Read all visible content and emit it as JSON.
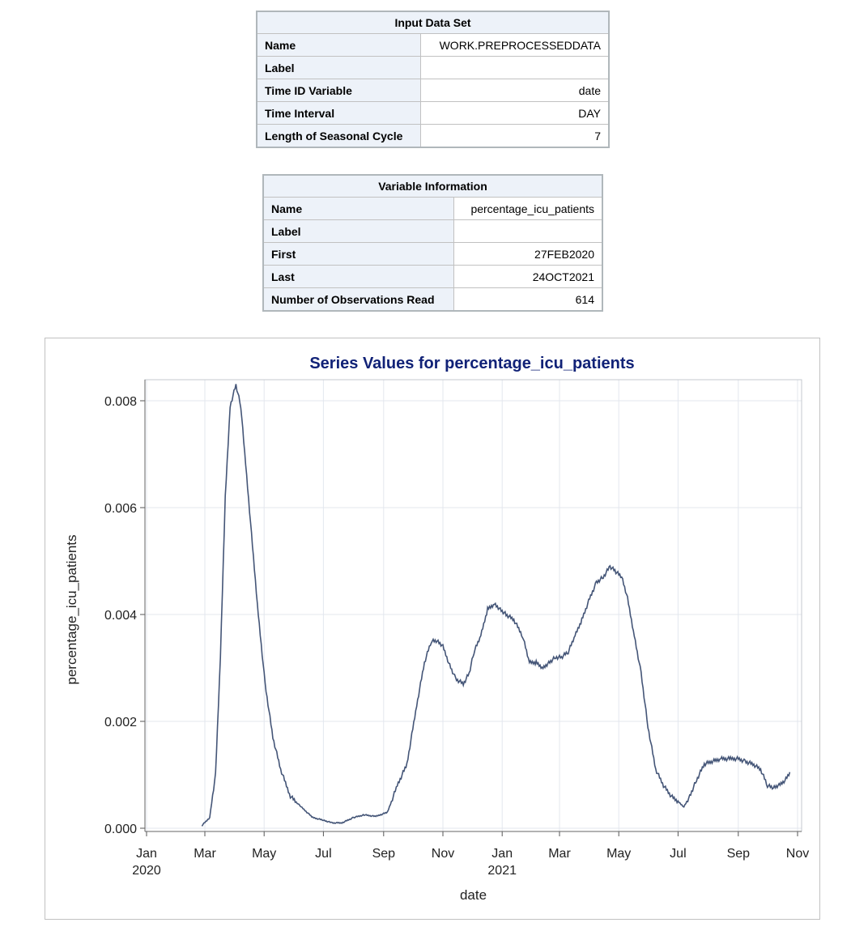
{
  "input_table": {
    "caption": "Input Data Set",
    "rows": [
      {
        "label": "Name",
        "value": "WORK.PREPROCESSEDDATA"
      },
      {
        "label": "Label",
        "value": ""
      },
      {
        "label": "Time ID Variable",
        "value": "date"
      },
      {
        "label": "Time Interval",
        "value": "DAY"
      },
      {
        "label": "Length of Seasonal Cycle",
        "value": "7"
      }
    ]
  },
  "variable_table": {
    "caption": "Variable Information",
    "rows": [
      {
        "label": "Name",
        "value": "percentage_icu_patients"
      },
      {
        "label": "Label",
        "value": ""
      },
      {
        "label": "First",
        "value": "27FEB2020"
      },
      {
        "label": "Last",
        "value": "24OCT2021"
      },
      {
        "label": "Number of Observations Read",
        "value": "614"
      }
    ]
  },
  "chart_data": {
    "type": "line",
    "title": "Series Values for percentage_icu_patients",
    "xlabel": "date",
    "ylabel": "percentage_icu_patients",
    "xlim": [
      "2020-01-01",
      "2021-11-01"
    ],
    "ylim": [
      0,
      0.008
    ],
    "x_ticks": [
      {
        "date": "2020-01-01",
        "label": "Jan",
        "year": "2020"
      },
      {
        "date": "2020-03-01",
        "label": "Mar",
        "year": ""
      },
      {
        "date": "2020-05-01",
        "label": "May",
        "year": ""
      },
      {
        "date": "2020-07-01",
        "label": "Jul",
        "year": ""
      },
      {
        "date": "2020-09-01",
        "label": "Sep",
        "year": ""
      },
      {
        "date": "2020-11-01",
        "label": "Nov",
        "year": ""
      },
      {
        "date": "2021-01-01",
        "label": "Jan",
        "year": "2021"
      },
      {
        "date": "2021-03-01",
        "label": "Mar",
        "year": ""
      },
      {
        "date": "2021-05-01",
        "label": "May",
        "year": ""
      },
      {
        "date": "2021-07-01",
        "label": "Jul",
        "year": ""
      },
      {
        "date": "2021-09-01",
        "label": "Sep",
        "year": ""
      },
      {
        "date": "2021-11-01",
        "label": "Nov",
        "year": ""
      }
    ],
    "y_ticks": [
      {
        "value": 0,
        "label": "0.000"
      },
      {
        "value": 0.002,
        "label": "0.002"
      },
      {
        "value": 0.004,
        "label": "0.004"
      },
      {
        "value": 0.006,
        "label": "0.006"
      },
      {
        "value": 0.008,
        "label": "0.008"
      }
    ],
    "grid": true,
    "line_color": "#445577",
    "series": [
      {
        "x": [
          "2020-02-27",
          "2020-03-06",
          "2020-03-12",
          "2020-03-17",
          "2020-03-22",
          "2020-03-27",
          "2020-04-02",
          "2020-04-07",
          "2020-04-12",
          "2020-04-18",
          "2020-04-25",
          "2020-05-02",
          "2020-05-10",
          "2020-05-18",
          "2020-05-28",
          "2020-06-08",
          "2020-06-20",
          "2020-07-01",
          "2020-07-10",
          "2020-07-20",
          "2020-08-01",
          "2020-08-12",
          "2020-08-24",
          "2020-09-05",
          "2020-09-15",
          "2020-09-25",
          "2020-10-05",
          "2020-10-13",
          "2020-10-20",
          "2020-10-26",
          "2020-11-01",
          "2020-11-07",
          "2020-11-14",
          "2020-11-22",
          "2020-11-28",
          "2020-12-03",
          "2020-12-10",
          "2020-12-17",
          "2020-12-24",
          "2020-12-30",
          "2021-01-05",
          "2021-01-13",
          "2021-01-22",
          "2021-01-29",
          "2021-02-05",
          "2021-02-12",
          "2021-02-18",
          "2021-02-25",
          "2021-03-03",
          "2021-03-10",
          "2021-03-17",
          "2021-03-24",
          "2021-04-01",
          "2021-04-08",
          "2021-04-15",
          "2021-04-22",
          "2021-04-28",
          "2021-05-04",
          "2021-05-10",
          "2021-05-17",
          "2021-05-24",
          "2021-05-31",
          "2021-06-08",
          "2021-06-16",
          "2021-06-24",
          "2021-07-01",
          "2021-07-07",
          "2021-07-13",
          "2021-07-20",
          "2021-07-28",
          "2021-08-05",
          "2021-08-14",
          "2021-08-24",
          "2021-09-01",
          "2021-09-08",
          "2021-09-16",
          "2021-09-24",
          "2021-10-01",
          "2021-10-07",
          "2021-10-13",
          "2021-10-19",
          "2021-10-24"
        ],
        "y": [
          5e-05,
          0.0002,
          0.001,
          0.0032,
          0.0062,
          0.0079,
          0.0083,
          0.0079,
          0.0068,
          0.0055,
          0.004,
          0.0027,
          0.0017,
          0.0011,
          0.0006,
          0.0004,
          0.0002,
          0.00015,
          0.0001,
          0.0001,
          0.0002,
          0.00025,
          0.00022,
          0.0003,
          0.0008,
          0.0012,
          0.0023,
          0.0031,
          0.0035,
          0.0035,
          0.0034,
          0.0031,
          0.0028,
          0.0027,
          0.0029,
          0.0033,
          0.0036,
          0.0041,
          0.0042,
          0.0041,
          0.004,
          0.0039,
          0.0036,
          0.0031,
          0.0031,
          0.003,
          0.0031,
          0.0032,
          0.0032,
          0.0033,
          0.0036,
          0.0039,
          0.0043,
          0.0046,
          0.0047,
          0.0049,
          0.0048,
          0.0047,
          0.0043,
          0.0036,
          0.0029,
          0.0019,
          0.0011,
          0.0008,
          0.0006,
          0.0005,
          0.0004,
          0.0006,
          0.0009,
          0.0012,
          0.00125,
          0.0013,
          0.0013,
          0.0013,
          0.00125,
          0.0012,
          0.0011,
          0.0008,
          0.00075,
          0.0008,
          0.0009,
          0.00105
        ]
      }
    ]
  }
}
